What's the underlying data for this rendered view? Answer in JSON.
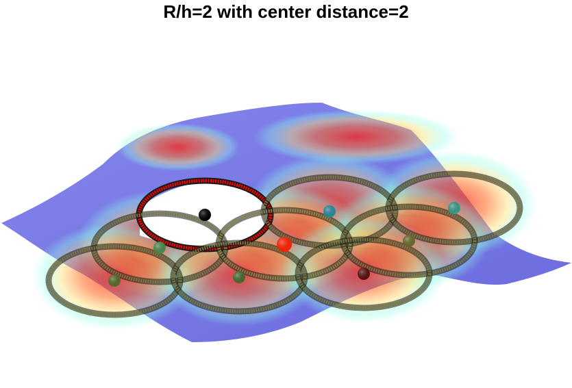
{
  "chart_data": {
    "type": "surface",
    "title": "R/h=2 with center distance=2",
    "xlabel": "",
    "ylabel": "",
    "zlabel": "",
    "axes_visible": false,
    "grid": false,
    "legend": "none",
    "colormap": "jet",
    "surface_opacity": 0.55,
    "radius_over_h": 2,
    "center_distance": 2,
    "disks": [
      {
        "row": 0,
        "col": 0,
        "u": -1.0,
        "v": -1.0,
        "marker": "#000000",
        "ring": "#ff2a00",
        "empty": true
      },
      {
        "row": 0,
        "col": 1,
        "u": 0.0,
        "v": -1.0,
        "marker": "#2a8a9a",
        "ring": "#7a7a40"
      },
      {
        "row": 0,
        "col": 2,
        "u": 1.0,
        "v": -1.0,
        "marker": "#3a9a8a",
        "ring": "#7a7a40"
      },
      {
        "row": 1,
        "col": 0,
        "u": -1.0,
        "v": 0.0,
        "marker": "#4a8a4a",
        "ring": "#7a7a40"
      },
      {
        "row": 1,
        "col": 1,
        "u": 0.0,
        "v": 0.0,
        "marker": "#ff2200",
        "ring": "#8a8a40"
      },
      {
        "row": 1,
        "col": 2,
        "u": 1.0,
        "v": 0.0,
        "marker": "#6a6a2a",
        "ring": "#7a7a40"
      },
      {
        "row": 2,
        "col": 0,
        "u": -1.0,
        "v": 1.0,
        "marker": "#5a6a2a",
        "ring": "#7a7a40"
      },
      {
        "row": 2,
        "col": 1,
        "u": 0.0,
        "v": 1.0,
        "marker": "#4a6a30",
        "ring": "#7a7a40"
      },
      {
        "row": 2,
        "col": 2,
        "u": 1.0,
        "v": 1.0,
        "marker": "#5a1010",
        "ring": "#7a7a40"
      }
    ],
    "colors": {
      "surface_low": "#6060e0",
      "surface_mid": "#80ffe0",
      "surface_high": "#ff2020",
      "empty_ring": "#ff0000"
    }
  }
}
